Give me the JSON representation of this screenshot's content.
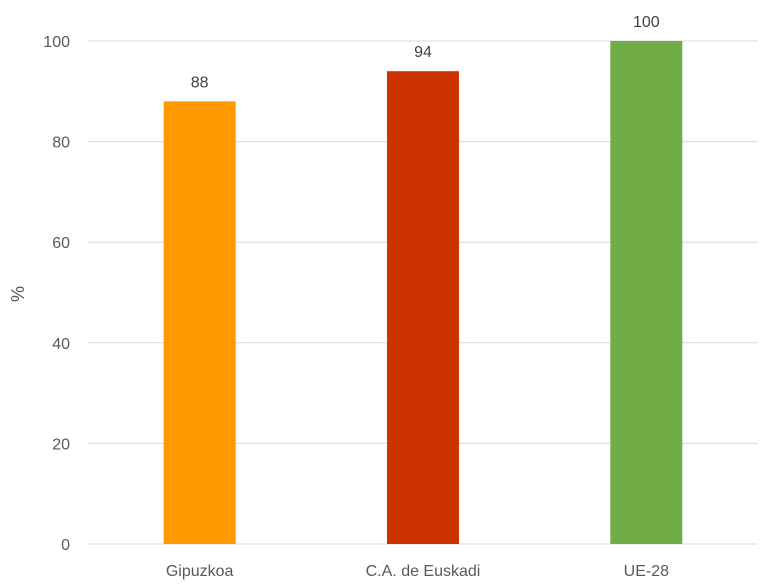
{
  "chart_data": {
    "type": "bar",
    "title": "",
    "xlabel": "",
    "ylabel": "%",
    "ylim": [
      0,
      100
    ],
    "yticks": [
      0,
      20,
      40,
      60,
      80,
      100
    ],
    "categories": [
      "Gipuzkoa",
      "C.A. de Euskadi",
      "UE-28"
    ],
    "values": [
      88,
      94,
      100
    ],
    "colors": [
      "#ff9900",
      "#cc3300",
      "#70ad47"
    ],
    "data_labels": [
      "88",
      "94",
      "100"
    ],
    "grid": true,
    "legend": "none"
  }
}
